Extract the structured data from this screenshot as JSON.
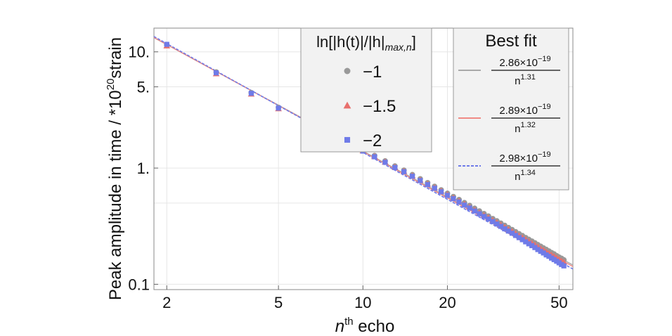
{
  "chart_data": {
    "type": "scatter",
    "x_scale": "log",
    "y_scale": "log",
    "xlim": [
      1.8,
      56
    ],
    "ylim": [
      0.09,
      16
    ],
    "grid": true,
    "xlabel": {
      "base": "n",
      "sup": "th",
      "rest": " echo"
    },
    "ylabel": {
      "text": "Peak amplitude in time / *10",
      "sup": "20",
      "rest": "strain"
    },
    "x_ticks": [
      {
        "value": 2,
        "label": "2"
      },
      {
        "value": 5,
        "label": "5"
      },
      {
        "value": 10,
        "label": "10"
      },
      {
        "value": 20,
        "label": "20"
      },
      {
        "value": 50,
        "label": "50"
      }
    ],
    "y_ticks": [
      {
        "value": 0.1,
        "label": "0.1"
      },
      {
        "value": 1,
        "label": "1."
      },
      {
        "value": 5,
        "label": "5."
      },
      {
        "value": 10,
        "label": "10."
      }
    ],
    "legend_markers": {
      "title": {
        "main": "ln[|h(t)|/|h|",
        "sub": "max,n",
        "close": "]"
      },
      "position": "top-center",
      "entries": [
        {
          "label": "−1",
          "color": "#999999",
          "marker": "circle"
        },
        {
          "label": "−1.5",
          "color": "#e8706d",
          "marker": "triangle"
        },
        {
          "label": "−2",
          "color": "#6f7be8",
          "marker": "square"
        }
      ]
    },
    "legend_fits": {
      "title": "Best fit",
      "position": "top-right",
      "entries": [
        {
          "numerator": "2.86×10",
          "num_exp": "−19",
          "denominator": "n",
          "den_exp": "1.31",
          "color": "#a9a9a9",
          "style": "solid"
        },
        {
          "numerator": "2.89×10",
          "num_exp": "−19",
          "denominator": "n",
          "den_exp": "1.32",
          "color": "#f08a85",
          "style": "solid"
        },
        {
          "numerator": "2.98×10",
          "num_exp": "−19",
          "denominator": "n",
          "den_exp": "1.34",
          "color": "#6f7be8",
          "style": "dashed"
        }
      ]
    },
    "series": [
      {
        "name": "−1",
        "color": "#999999",
        "marker": "circle",
        "x": [
          2,
          3,
          4,
          5,
          10,
          11,
          12,
          13,
          14,
          15,
          16,
          17,
          18,
          19,
          20,
          21,
          22,
          23,
          24,
          25,
          26,
          27,
          28,
          29,
          30,
          31,
          32,
          33,
          34,
          35,
          36,
          37,
          38,
          39,
          40,
          41,
          42,
          43,
          44,
          45,
          46,
          47,
          48,
          49,
          50,
          51,
          52
        ],
        "y": [
          11.5,
          6.7,
          4.45,
          3.32,
          1.43,
          1.28,
          1.15,
          1.04,
          0.957,
          0.877,
          0.807,
          0.748,
          0.695,
          0.648,
          0.606,
          0.568,
          0.535,
          0.503,
          0.476,
          0.45,
          0.427,
          0.405,
          0.386,
          0.367,
          0.351,
          0.335,
          0.321,
          0.307,
          0.295,
          0.283,
          0.272,
          0.262,
          0.252,
          0.243,
          0.235,
          0.227,
          0.219,
          0.212,
          0.205,
          0.199,
          0.193,
          0.187,
          0.182,
          0.176,
          0.171,
          0.167,
          0.162
        ]
      },
      {
        "name": "−1.5",
        "color": "#e8706d",
        "marker": "triangle",
        "x": [
          2,
          3,
          4,
          5,
          10,
          11,
          12,
          13,
          14,
          15,
          16,
          17,
          18,
          19,
          20,
          21,
          22,
          23,
          24,
          25,
          26,
          27,
          28,
          29,
          30,
          31,
          32,
          33,
          34,
          35,
          36,
          37,
          38,
          39,
          40,
          41,
          42,
          43,
          44,
          45,
          46,
          47,
          48,
          49,
          50,
          51,
          52
        ],
        "y": [
          11.3,
          6.5,
          4.35,
          3.25,
          1.41,
          1.26,
          1.13,
          1.02,
          0.94,
          0.86,
          0.79,
          0.73,
          0.68,
          0.635,
          0.592,
          0.555,
          0.522,
          0.49,
          0.463,
          0.437,
          0.414,
          0.393,
          0.374,
          0.356,
          0.34,
          0.325,
          0.31,
          0.297,
          0.285,
          0.273,
          0.262,
          0.252,
          0.243,
          0.234,
          0.226,
          0.218,
          0.21,
          0.203,
          0.197,
          0.19,
          0.185,
          0.179,
          0.174,
          0.169,
          0.164,
          0.159,
          0.155
        ]
      },
      {
        "name": "−2",
        "color": "#6f7be8",
        "marker": "square",
        "x": [
          2,
          3,
          4,
          5,
          10,
          11,
          12,
          13,
          14,
          15,
          16,
          17,
          18,
          19,
          20,
          21,
          22,
          23,
          24,
          25,
          26,
          27,
          28,
          29,
          30,
          31,
          32,
          33,
          34,
          35,
          36,
          37,
          38,
          39,
          40,
          41,
          42,
          43,
          44,
          45,
          46,
          47,
          48,
          49,
          50,
          51,
          52
        ],
        "y": [
          11.6,
          6.6,
          4.4,
          3.28,
          1.4,
          1.25,
          1.12,
          1.01,
          0.93,
          0.85,
          0.78,
          0.72,
          0.67,
          0.625,
          0.582,
          0.545,
          0.511,
          0.48,
          0.453,
          0.427,
          0.404,
          0.383,
          0.364,
          0.346,
          0.33,
          0.315,
          0.3,
          0.287,
          0.275,
          0.263,
          0.252,
          0.242,
          0.232,
          0.223,
          0.215,
          0.207,
          0.199,
          0.192,
          0.186,
          0.179,
          0.174,
          0.168,
          0.163,
          0.158,
          0.153,
          0.148,
          0.144
        ]
      }
    ],
    "fits": [
      {
        "amplitude": 28.6,
        "exponent": 1.31,
        "color": "#a9a9a9",
        "style": "solid"
      },
      {
        "amplitude": 28.9,
        "exponent": 1.32,
        "color": "#f08a85",
        "style": "solid"
      },
      {
        "amplitude": 29.8,
        "exponent": 1.34,
        "color": "#6f7be8",
        "style": "dashed"
      }
    ]
  }
}
